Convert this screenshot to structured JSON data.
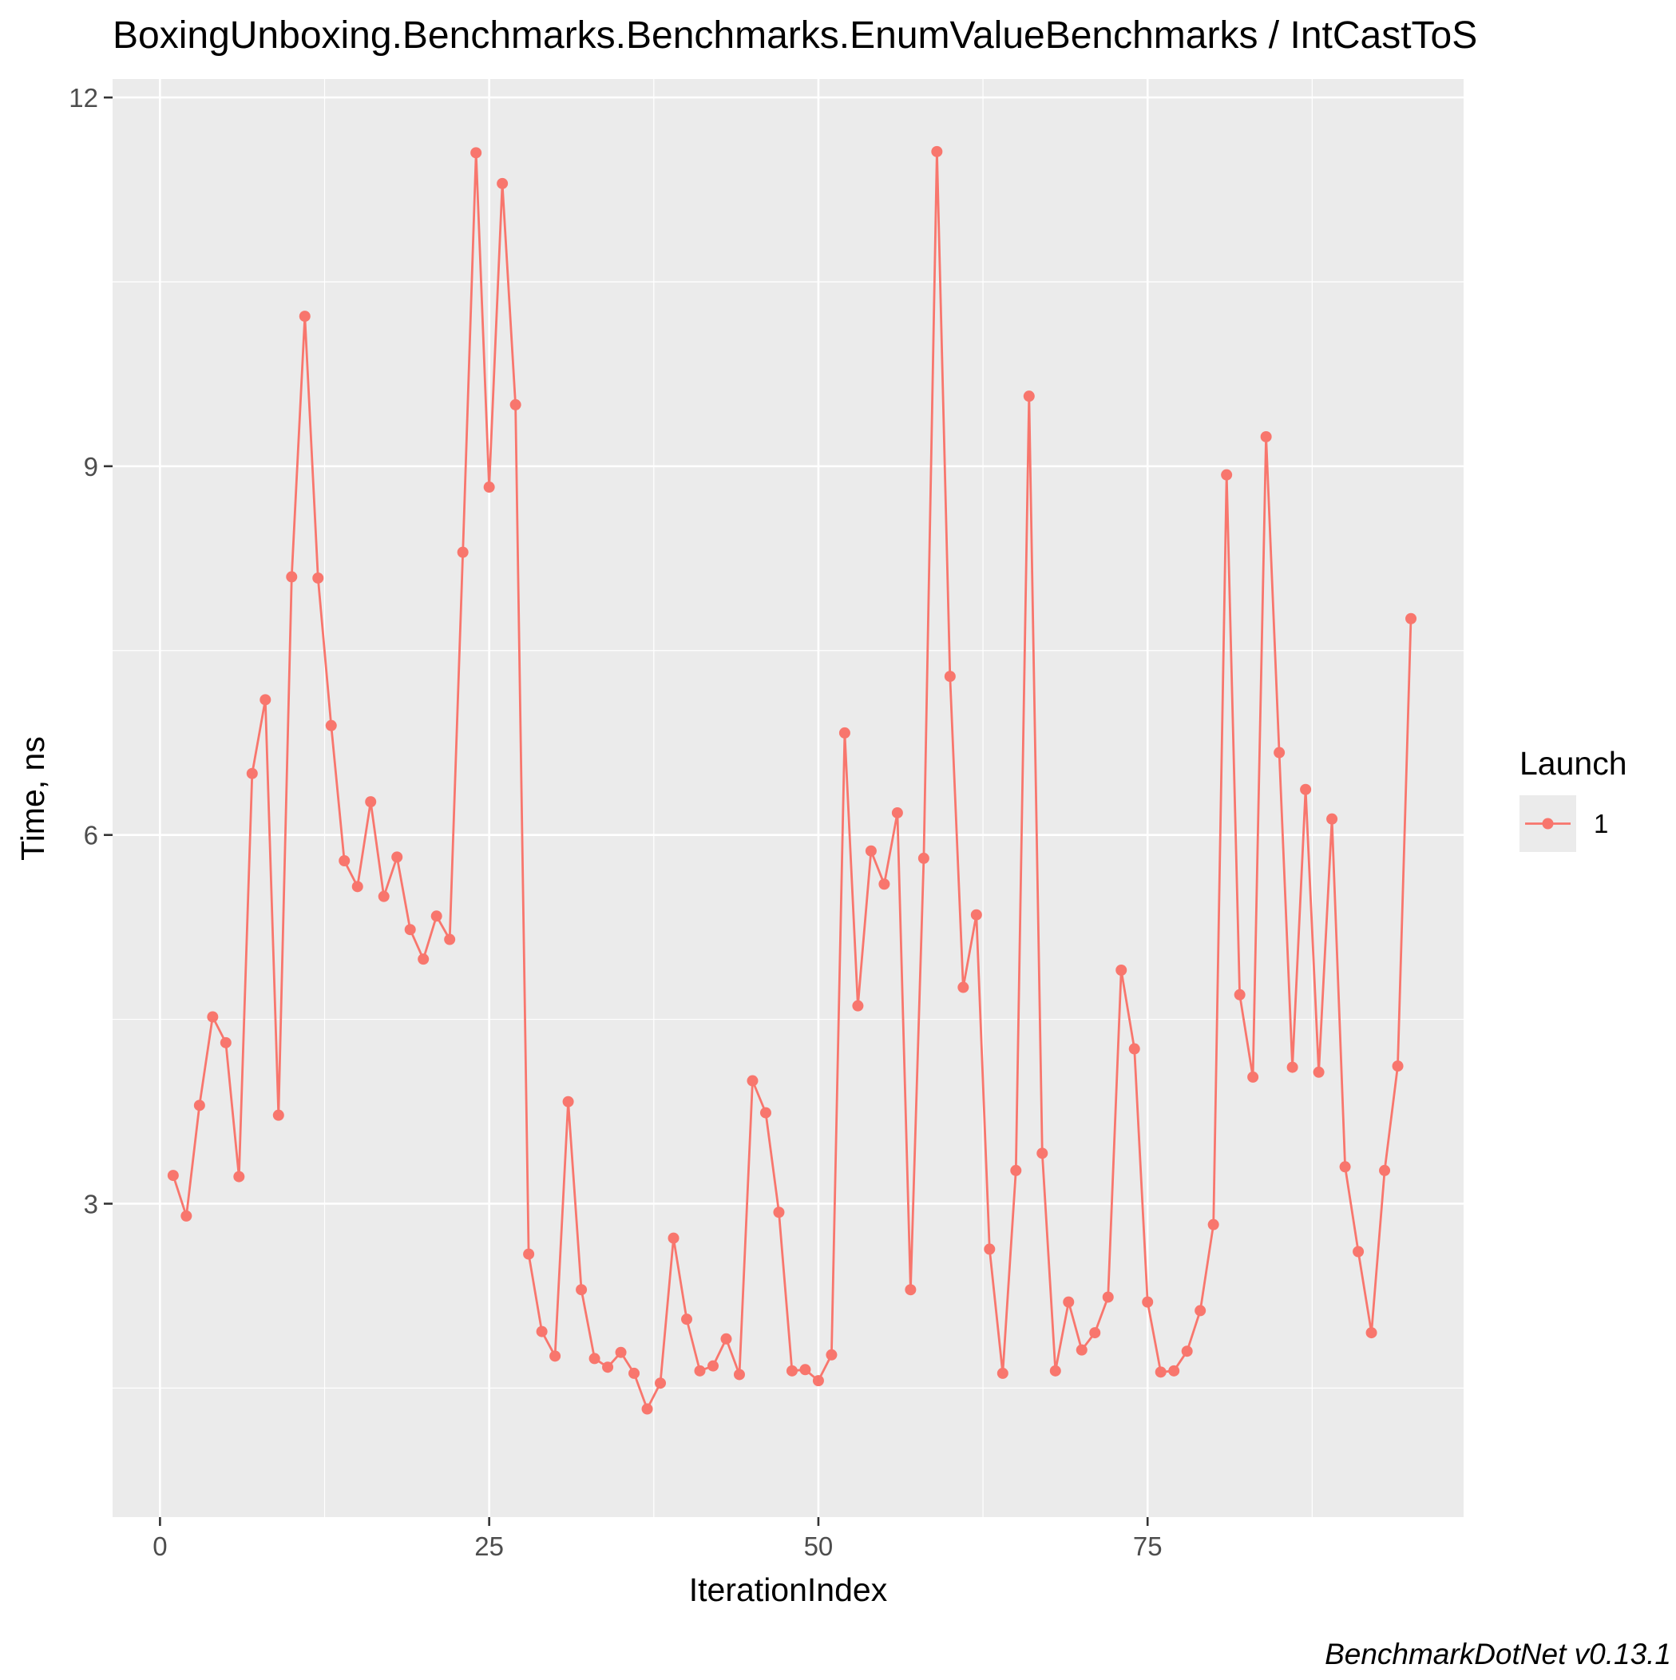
{
  "chart_data": {
    "type": "line",
    "title": "BoxingUnboxing.Benchmarks.Benchmarks.EnumValueBenchmarks / IntCastToS",
    "xlabel": "IterationIndex",
    "ylabel": "Time, ns",
    "xlim": [
      -3.6,
      99
    ],
    "ylim": [
      0.45,
      12.15
    ],
    "x_ticks": [
      0,
      25,
      50,
      75
    ],
    "y_ticks": [
      3,
      6,
      9,
      12
    ],
    "grid": true,
    "legend": {
      "title": "Launch",
      "position": "right"
    },
    "series": [
      {
        "name": "1",
        "color": "#F8766D",
        "x": [
          1,
          2,
          3,
          4,
          5,
          6,
          7,
          8,
          9,
          10,
          11,
          12,
          13,
          14,
          15,
          16,
          17,
          18,
          19,
          20,
          21,
          22,
          23,
          24,
          25,
          26,
          27,
          28,
          29,
          30,
          31,
          32,
          33,
          34,
          35,
          36,
          37,
          38,
          39,
          40,
          41,
          42,
          43,
          44,
          45,
          46,
          47,
          48,
          49,
          50,
          51,
          52,
          53,
          54,
          55,
          56,
          57,
          58,
          59,
          60,
          61,
          62,
          63,
          64,
          65,
          66,
          67,
          68,
          69,
          70,
          71,
          72,
          73,
          74,
          75,
          76,
          77,
          78,
          79,
          80,
          81,
          82,
          83,
          84,
          85,
          86,
          87,
          88,
          89,
          90,
          91,
          92,
          93,
          94,
          95
        ],
        "y": [
          3.23,
          2.9,
          3.8,
          4.52,
          4.31,
          3.22,
          6.5,
          7.1,
          3.72,
          8.1,
          10.22,
          8.09,
          6.89,
          5.79,
          5.58,
          6.27,
          5.5,
          5.82,
          5.23,
          4.99,
          5.34,
          5.15,
          8.3,
          11.55,
          8.83,
          11.3,
          9.5,
          2.59,
          1.96,
          1.76,
          3.83,
          2.3,
          1.74,
          1.67,
          1.79,
          1.62,
          1.33,
          1.54,
          2.72,
          2.06,
          1.64,
          1.68,
          1.9,
          1.61,
          4.0,
          3.74,
          2.93,
          1.64,
          1.65,
          1.56,
          1.77,
          6.83,
          4.61,
          5.87,
          5.6,
          6.18,
          2.3,
          5.81,
          11.56,
          7.29,
          4.76,
          5.35,
          2.63,
          1.62,
          3.27,
          9.57,
          3.41,
          1.64,
          2.2,
          1.81,
          1.95,
          2.24,
          4.9,
          4.26,
          2.2,
          1.63,
          1.64,
          1.8,
          2.13,
          2.83,
          8.93,
          4.7,
          4.03,
          9.24,
          6.67,
          4.11,
          6.37,
          4.07,
          6.13,
          3.3,
          2.61,
          1.95,
          3.27,
          4.12,
          7.76
        ]
      }
    ]
  },
  "caption": "BenchmarkDotNet v0.13.1"
}
